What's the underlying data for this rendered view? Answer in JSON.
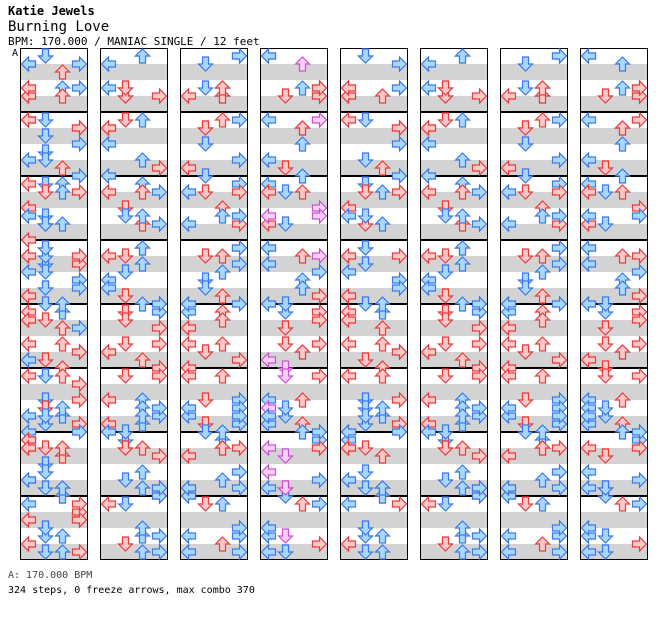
{
  "header": {
    "author": "Katie Jewels",
    "song_title": "Burning Love",
    "meta_line": "BPM: 170.000 / MANIAC SINGLE / 12 feet",
    "bpm_marker": "A"
  },
  "footer": {
    "bpm_legend": "A: 170.000 BPM",
    "stats": "324 steps, 0 freeze arrows, max combo 370"
  },
  "colors": {
    "red_fill": "#ffc8c8",
    "red_stroke": "#e83c3c",
    "blue_fill": "#a8d8ff",
    "blue_stroke": "#3c78e8",
    "pink_fill": "#ffd0ff",
    "pink_stroke": "#c850d0",
    "stripe": "#d3d3d3",
    "frame": "#000000"
  },
  "chart_data": {
    "type": "stepchart",
    "columns": 8,
    "measures_per_column": 8,
    "lanes": [
      "left",
      "down",
      "up",
      "right"
    ],
    "note_rows_per_measure": 4,
    "columns_data": [
      {
        "notes": [
          [
            0,
            4,
            0,
            "r"
          ],
          [
            2,
            4,
            3,
            "r"
          ],
          [
            2,
            6,
            2,
            "b"
          ],
          [
            2,
            7,
            0,
            "r"
          ],
          [
            3,
            1,
            1,
            "b"
          ],
          [
            3,
            4,
            0,
            "r"
          ],
          [
            3,
            6,
            1,
            "b"
          ],
          [
            3,
            7,
            1,
            "b"
          ],
          [
            4,
            0,
            2,
            "b"
          ],
          [
            4,
            1,
            3,
            "b"
          ],
          [
            4,
            3,
            1,
            "r"
          ],
          [
            5,
            0,
            0,
            "r"
          ],
          [
            5,
            0,
            1,
            "b"
          ],
          [
            5,
            3,
            3,
            "r"
          ],
          [
            5,
            5,
            1,
            "b"
          ],
          [
            5,
            6,
            0,
            "b"
          ],
          [
            5,
            7,
            3,
            "b"
          ],
          [
            6,
            0,
            0,
            "b"
          ],
          [
            6,
            2,
            1,
            "b"
          ],
          [
            6,
            3,
            2,
            "r"
          ],
          [
            6,
            4,
            1,
            "r"
          ],
          [
            6,
            5,
            1,
            "b"
          ],
          [
            6,
            6,
            0,
            "b"
          ],
          [
            6,
            7,
            2,
            "r"
          ],
          [
            7,
            1,
            0,
            "r"
          ],
          [
            7,
            2,
            2,
            "b"
          ],
          [
            7,
            3,
            1,
            "b"
          ],
          [
            7,
            4,
            3,
            "r"
          ],
          [
            8,
            0,
            1,
            "b"
          ],
          [
            8,
            2,
            0,
            "b"
          ],
          [
            8,
            2,
            2,
            "b"
          ],
          [
            8,
            6,
            0,
            "b"
          ],
          [
            8,
            6,
            2,
            "r"
          ],
          [
            9,
            0,
            0,
            "r"
          ],
          [
            9,
            0,
            1,
            "b"
          ],
          [
            9,
            4,
            3,
            "r"
          ],
          [
            9,
            6,
            0,
            "b"
          ],
          [
            9,
            7,
            3,
            "b"
          ],
          [
            10,
            0,
            1,
            "b"
          ],
          [
            10,
            2,
            0,
            "b"
          ],
          [
            10,
            5,
            0,
            "r"
          ],
          [
            10,
            6,
            1,
            "r"
          ],
          [
            11,
            1,
            3,
            "r"
          ],
          [
            11,
            3,
            0,
            "r"
          ],
          [
            11,
            5,
            0,
            "b"
          ],
          [
            11,
            6,
            1,
            "b"
          ],
          [
            12,
            0,
            0,
            "r"
          ],
          [
            12,
            2,
            2,
            "r"
          ],
          [
            12,
            4,
            1,
            "r"
          ],
          [
            12,
            6,
            3,
            "b"
          ],
          [
            13,
            2,
            1,
            "b"
          ],
          [
            13,
            4,
            3,
            "r"
          ],
          [
            13,
            6,
            2,
            "b"
          ],
          [
            13,
            7,
            0,
            "b"
          ],
          [
            14,
            0,
            0,
            "b"
          ],
          [
            14,
            2,
            1,
            "b"
          ],
          [
            14,
            4,
            0,
            "r"
          ],
          [
            14,
            6,
            0,
            "b"
          ],
          [
            15,
            0,
            3,
            "r"
          ],
          [
            15,
            2,
            1,
            "b"
          ],
          [
            15,
            3,
            3,
            "r"
          ],
          [
            16,
            0,
            1,
            "b"
          ],
          [
            16,
            2,
            3,
            "b"
          ],
          [
            16,
            4,
            0,
            "b"
          ],
          [
            16,
            6,
            0,
            "r"
          ],
          [
            17,
            0,
            0,
            "r"
          ],
          [
            17,
            2,
            1,
            "b"
          ],
          [
            17,
            4,
            3,
            "r"
          ],
          [
            17,
            6,
            1,
            "b"
          ],
          [
            18,
            0,
            2,
            "b"
          ],
          [
            18,
            2,
            0,
            "b"
          ],
          [
            18,
            4,
            2,
            "b"
          ],
          [
            18,
            6,
            1,
            "b"
          ],
          [
            19,
            0,
            1,
            "r"
          ],
          [
            19,
            2,
            3,
            "b"
          ],
          [
            19,
            4,
            1,
            "b"
          ],
          [
            19,
            6,
            3,
            "b"
          ],
          [
            20,
            1,
            2,
            "r"
          ],
          [
            20,
            3,
            0,
            "b"
          ],
          [
            20,
            4,
            0,
            "r"
          ],
          [
            20,
            7,
            2,
            "r"
          ],
          [
            21,
            0,
            1,
            "b"
          ],
          [
            21,
            2,
            2,
            "b"
          ],
          [
            21,
            3,
            1,
            "b"
          ],
          [
            21,
            6,
            1,
            "b"
          ],
          [
            22,
            1,
            2,
            "r"
          ],
          [
            22,
            3,
            1,
            "b"
          ],
          [
            22,
            4,
            2,
            "r"
          ],
          [
            22,
            7,
            2,
            "b"
          ],
          [
            23,
            0,
            0,
            "b"
          ],
          [
            23,
            1,
            3,
            "r"
          ],
          [
            23,
            6,
            0,
            "r"
          ],
          [
            23,
            7,
            0,
            "b"
          ],
          [
            24,
            1,
            2,
            "r"
          ],
          [
            24,
            2,
            0,
            "r"
          ],
          [
            24,
            4,
            3,
            "b"
          ],
          [
            25,
            1,
            1,
            "b"
          ],
          [
            25,
            3,
            2,
            "r"
          ],
          [
            25,
            5,
            3,
            "b"
          ],
          [
            26,
            0,
            0,
            "r"
          ],
          [
            26,
            2,
            1,
            "b"
          ],
          [
            26,
            4,
            1,
            "r"
          ],
          [
            26,
            6,
            1,
            "b"
          ],
          [
            27,
            0,
            1,
            "b"
          ],
          [
            27,
            4,
            3,
            "r"
          ],
          [
            27,
            5,
            1,
            "b"
          ],
          [
            27,
            7,
            2,
            "b"
          ],
          [
            28,
            2,
            0,
            "r"
          ],
          [
            28,
            4,
            0,
            "r"
          ],
          [
            28,
            6,
            3,
            "r"
          ],
          [
            29,
            0,
            2,
            "r"
          ],
          [
            29,
            2,
            1,
            "r"
          ],
          [
            29,
            5,
            3,
            "r"
          ],
          [
            29,
            6,
            1,
            "b"
          ],
          [
            30,
            0,
            0,
            "r"
          ],
          [
            30,
            3,
            2,
            "b"
          ],
          [
            30,
            4,
            0,
            "r"
          ],
          [
            31,
            1,
            3,
            "r"
          ],
          [
            31,
            3,
            2,
            "b"
          ],
          [
            31,
            5,
            1,
            "b"
          ],
          [
            31,
            7,
            3,
            "b"
          ]
        ]
      }
    ]
  }
}
